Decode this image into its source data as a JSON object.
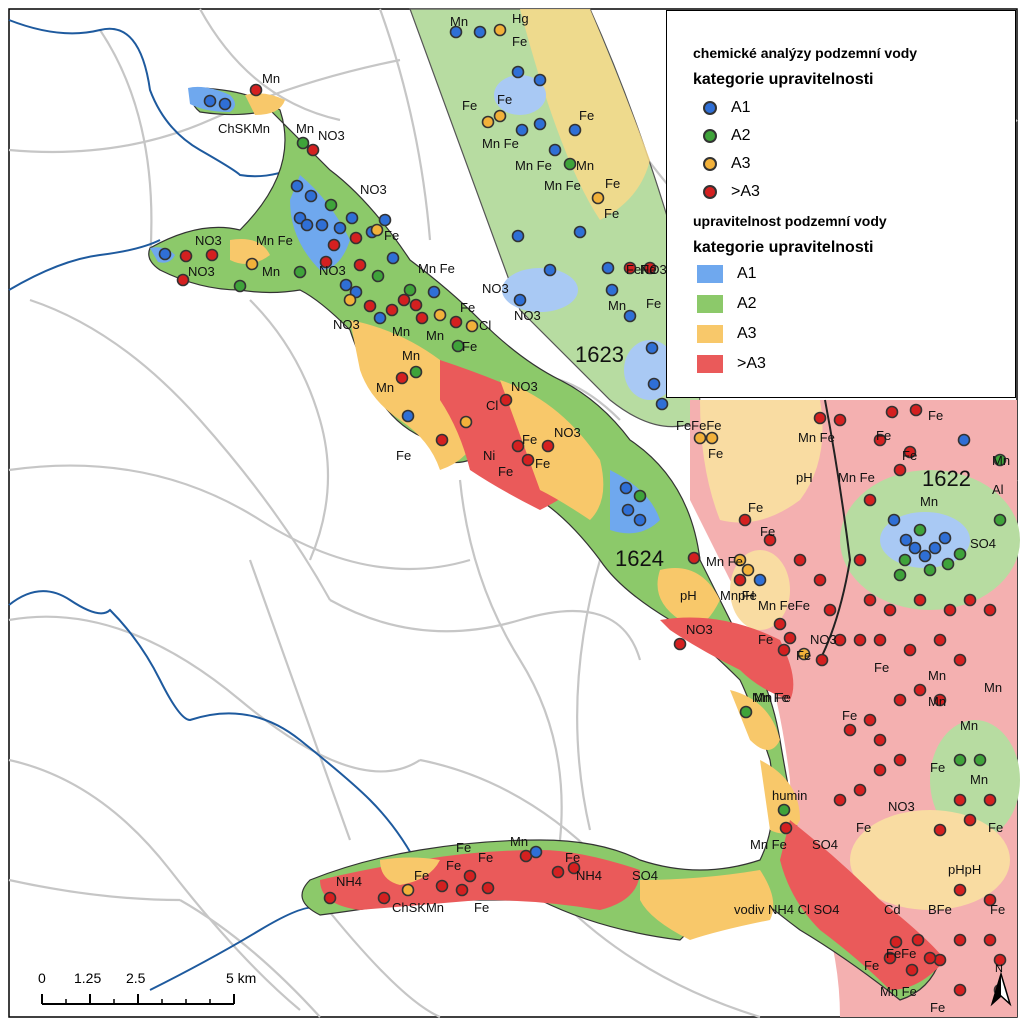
{
  "legend": {
    "points_title": "chemické analýzy podzemní vody",
    "points_subtitle": "kategorie upravitelnosti",
    "points": [
      {
        "label": "A1",
        "color": "#2f6fd6"
      },
      {
        "label": "A2",
        "color": "#3fa33a"
      },
      {
        "label": "A3",
        "color": "#f2b13a"
      },
      {
        "label": ">A3",
        "color": "#d42020"
      }
    ],
    "areas_title": "upravitelnost podzemní vody",
    "areas_subtitle": "kategorie upravitelnosti",
    "areas": [
      {
        "label": "A1",
        "color": "#6fa8ee"
      },
      {
        "label": "A2",
        "color": "#8cc96a"
      },
      {
        "label": "A3",
        "color": "#f8c86a"
      },
      {
        "label": ">A3",
        "color": "#ea5a5a"
      }
    ]
  },
  "region_labels": [
    "1623",
    "1622",
    "1624"
  ],
  "annotations": {
    "north_cluster": [
      "Mn",
      "ChSKMn",
      "Mn",
      "NO3",
      "NO3",
      "NO3",
      "Mn Fe",
      "NO3",
      "Mn",
      "Fe",
      "NO3",
      "Mn Fe",
      "NO3",
      "NO3",
      "Mn",
      "Fe",
      "Cl",
      "Fe",
      "Mn",
      "Mn",
      "Mn",
      "Cl",
      "NO3",
      "NO3",
      "Fe",
      "Fe",
      "Ni",
      "Fe",
      "Fe"
    ],
    "east": [
      "Mn",
      "Hg",
      "Fe",
      "Fe",
      "Fe",
      "Fe",
      "Mn Fe",
      "Mn Fe",
      "Mn",
      "Mn Fe",
      "Fe",
      "Fe",
      "NO3",
      "NO3",
      "FeFe",
      "Mn",
      "Fe"
    ],
    "southeast": [
      "FeFeFe",
      "Fe",
      "Mn Fe",
      "pH",
      "Mn Fe",
      "Fe",
      "Fe",
      "Fe",
      "Mn",
      "Al",
      "Mn",
      "SO4",
      "Fe",
      "Fe",
      "pH",
      "Mn Fe",
      "NO3",
      "Fe",
      "Fe",
      "Mn Fe",
      "Mn",
      "Mn",
      "Mn",
      "Fe",
      "Fe",
      "Mn",
      "Mn",
      "NO3",
      "Fe",
      "pHpH",
      "Fe"
    ],
    "corridor": [
      "Mn Fe",
      "pH",
      "Mn FeFe",
      "NO3",
      "Fe",
      "Mn Fe",
      "humin",
      "Mn Fe",
      "SO4"
    ],
    "south": [
      "NH4",
      "Fe",
      "Fe",
      "Fe",
      "Fe",
      "Mn",
      "Fe",
      "ChSKMn",
      "Fe",
      "NH4",
      "SO4",
      "vodiv NH4 Cl SO4",
      "Cd",
      "BFe",
      "Fe",
      "Fe",
      "FeFe",
      "Mn Fe",
      "Fe"
    ]
  },
  "scalebar": {
    "ticks": [
      "0",
      "1.25",
      "2.5",
      "5 km"
    ]
  },
  "north_arrow": "N"
}
